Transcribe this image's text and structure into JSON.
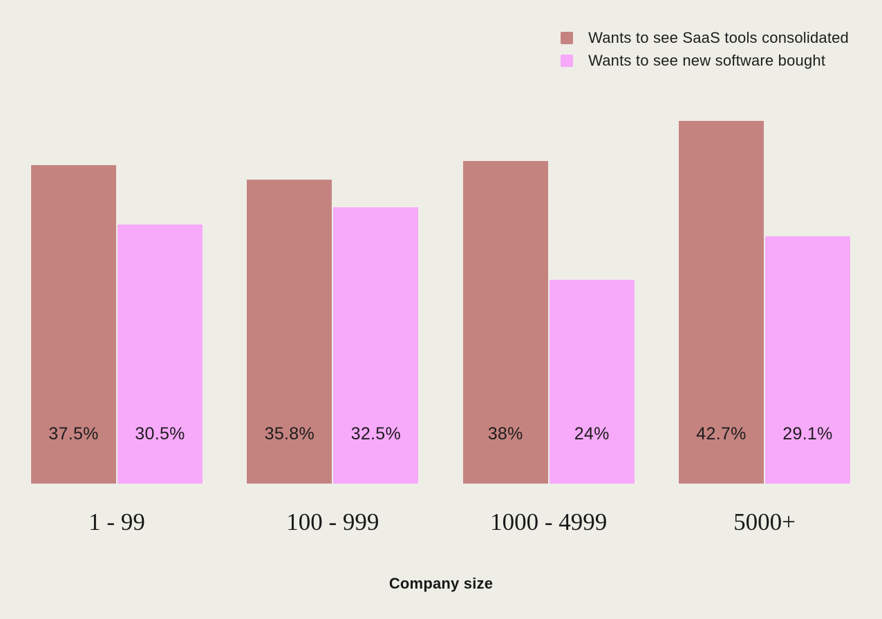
{
  "chart_data": {
    "type": "bar",
    "title": "",
    "xlabel": "Company size",
    "ylabel": "",
    "value_suffix": "%",
    "categories": [
      "1 - 99",
      "100 - 999",
      "1000 - 4999",
      "5000+"
    ],
    "series": [
      {
        "name": "Wants to see SaaS tools consolidated",
        "color": "#c58380",
        "values": [
          37.5,
          35.8,
          38,
          42.7
        ]
      },
      {
        "name": "Wants to see new software bought",
        "color": "#f7a9fa",
        "values": [
          30.5,
          32.5,
          24,
          29.1
        ]
      }
    ],
    "ylim": [
      0,
      45
    ],
    "axes_visible": false,
    "grid": false,
    "legend_position": "top-right",
    "background_color": "#eeeee7",
    "label_position": "inside-bottom"
  }
}
